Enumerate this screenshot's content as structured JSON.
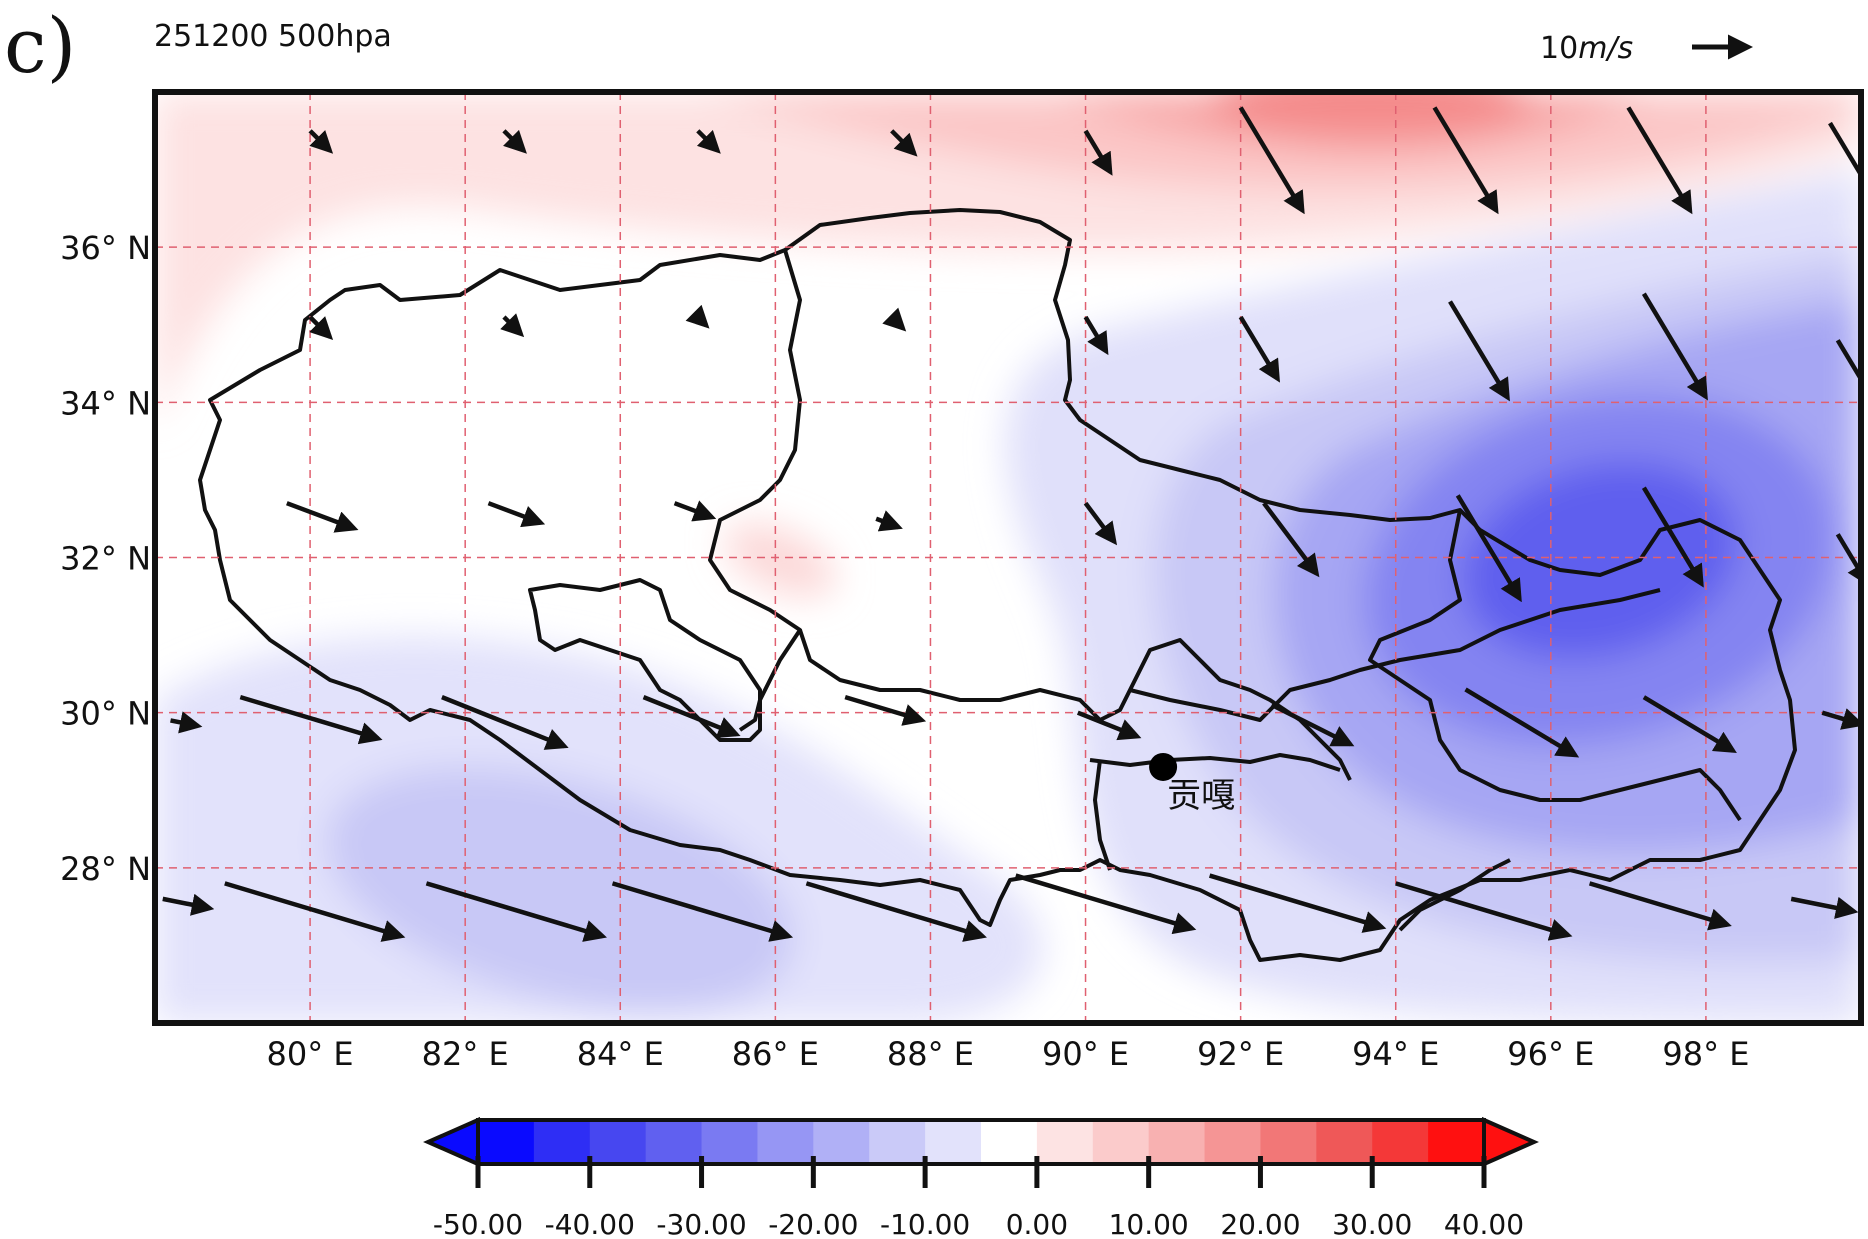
{
  "panel_label": "c)",
  "title": "251200  500hpa",
  "wind_scale": {
    "label_num": "10",
    "label_unit": "m/s"
  },
  "map": {
    "lon_range": [
      78,
      100
    ],
    "lat_range": [
      26,
      38
    ],
    "lon_ticks": [
      80,
      82,
      84,
      86,
      88,
      90,
      92,
      94,
      96,
      98
    ],
    "lat_ticks": [
      28,
      30,
      32,
      34,
      36
    ],
    "lon_tick_labels": [
      "80° E",
      "82° E",
      "84° E",
      "86° E",
      "88° E",
      "90° E",
      "92° E",
      "94° E",
      "96° E",
      "98° E"
    ],
    "lat_tick_labels": [
      "28° N",
      "30° N",
      "32° N",
      "34° N",
      "36° N"
    ],
    "grid": true
  },
  "station": {
    "name": "贡嘎",
    "lon": 91.0,
    "lat": 29.3
  },
  "colorbar": {
    "ticks": [
      "-50.00",
      "-40.00",
      "-30.00",
      "-20.00",
      "-10.00",
      "0.00",
      "10.00",
      "20.00",
      "30.00",
      "40.00"
    ],
    "colors": [
      "#0a0aff",
      "#2e2ef5",
      "#4747f0",
      "#6060f0",
      "#7a7af2",
      "#9696f4",
      "#b0b0f6",
      "#cacaf8",
      "#e2e2fb",
      "#ffffff",
      "#fde3e3",
      "#fbcbcb",
      "#f8b1b1",
      "#f59595",
      "#f27777",
      "#ef5858",
      "#f43838",
      "#ff1010"
    ]
  },
  "colors": {
    "background": "#ffffff",
    "grid": "#e06070",
    "border": "#111111"
  }
}
